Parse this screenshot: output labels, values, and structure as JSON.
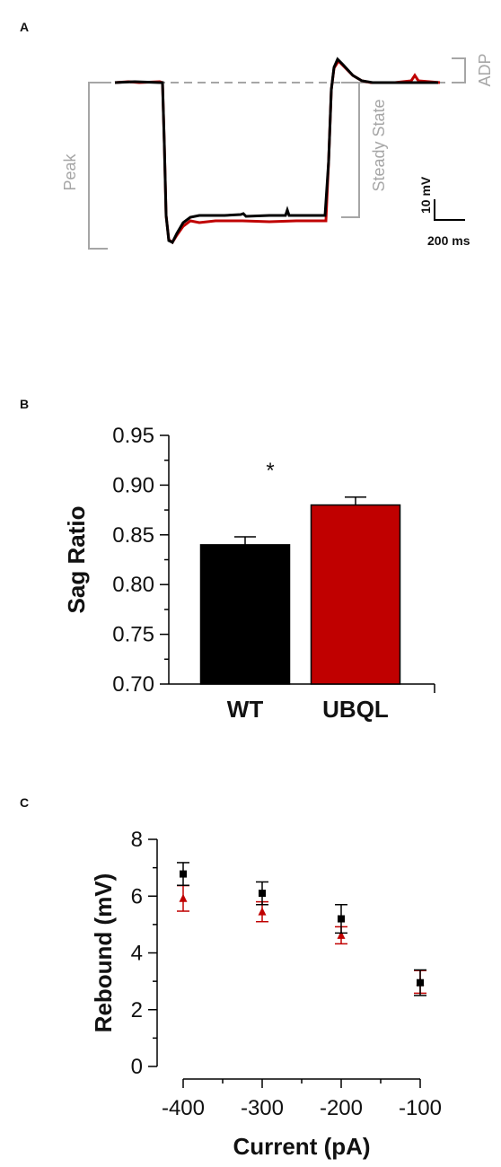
{
  "panels": {
    "a": {
      "label": "A",
      "annotations": [
        "Peak",
        "Steady State",
        "ADP"
      ],
      "scalebar": {
        "v_label": "10 mV",
        "t_label": "200 ms"
      },
      "colors": {
        "wt": "#000000",
        "ubql": "#c00000",
        "annotation": "#a6a6a6"
      }
    },
    "b": {
      "label": "B"
    },
    "c": {
      "label": "C"
    }
  },
  "chart_data": [
    {
      "type": "bar",
      "panel": "B",
      "categories": [
        "WT",
        "UBQL"
      ],
      "values": [
        0.84,
        0.88
      ],
      "errors": [
        0.008,
        0.008
      ],
      "colors": [
        "#000000",
        "#c00000"
      ],
      "ylabel": "Sag Ratio",
      "xlabel": "",
      "ylim": [
        0.7,
        0.95
      ],
      "yticks": [
        "0.70",
        "0.75",
        "0.80",
        "0.85",
        "0.90",
        "0.95"
      ],
      "annotations": [
        "*"
      ]
    },
    {
      "type": "scatter",
      "panel": "C",
      "x": [
        -400,
        -300,
        -200,
        -100
      ],
      "series": [
        {
          "marker": "square",
          "color": "#000000",
          "values": [
            6.78,
            6.1,
            5.2,
            2.95
          ],
          "errors": [
            0.4,
            0.4,
            0.5,
            0.45
          ]
        },
        {
          "marker": "triangle",
          "color": "#c00000",
          "values": [
            5.92,
            5.45,
            4.62,
            2.98
          ],
          "errors": [
            0.45,
            0.35,
            0.3,
            0.4
          ]
        }
      ],
      "xlabel": "Current (pA)",
      "ylabel": "Rebound (mV)",
      "xlim": [
        -400,
        -100
      ],
      "ylim": [
        0,
        8
      ],
      "xticks": [
        "-400",
        "-300",
        "-200",
        "-100"
      ],
      "yticks": [
        "0",
        "2",
        "4",
        "6",
        "8"
      ]
    }
  ]
}
